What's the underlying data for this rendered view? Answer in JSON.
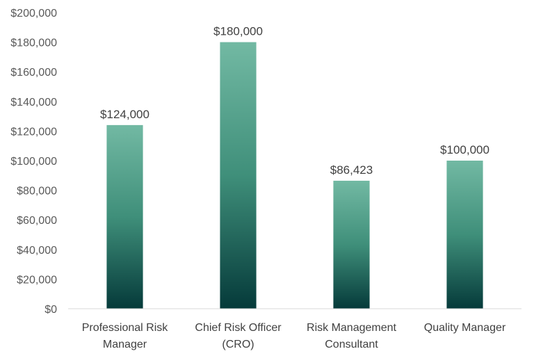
{
  "chart_data": {
    "type": "bar",
    "title": "",
    "xlabel": "",
    "ylabel": "",
    "categories": [
      [
        "Professional Risk",
        "Manager"
      ],
      [
        "Chief Risk Officer",
        "(CRO)"
      ],
      [
        "Risk Management",
        "Consultant"
      ],
      [
        "Quality Manager"
      ]
    ],
    "values": [
      124000,
      180000,
      86423,
      100000
    ],
    "data_labels": [
      "$124,000",
      "$180,000",
      "$86,423",
      "$100,000"
    ],
    "ylim": [
      0,
      200000
    ],
    "yticks": [
      0,
      20000,
      40000,
      60000,
      80000,
      100000,
      120000,
      140000,
      160000,
      180000,
      200000
    ],
    "ytick_labels": [
      "$0",
      "$20,000",
      "$40,000",
      "$60,000",
      "$80,000",
      "$100,000",
      "$120,000",
      "$140,000",
      "$160,000",
      "$180,000",
      "$200,000"
    ],
    "grid": false,
    "legend": "none",
    "colors": {
      "bar_top": "#72b9a3",
      "bar_mid": "#3f8f7a",
      "bar_bottom": "#053a3a",
      "axis": "#d9d9d9"
    }
  }
}
